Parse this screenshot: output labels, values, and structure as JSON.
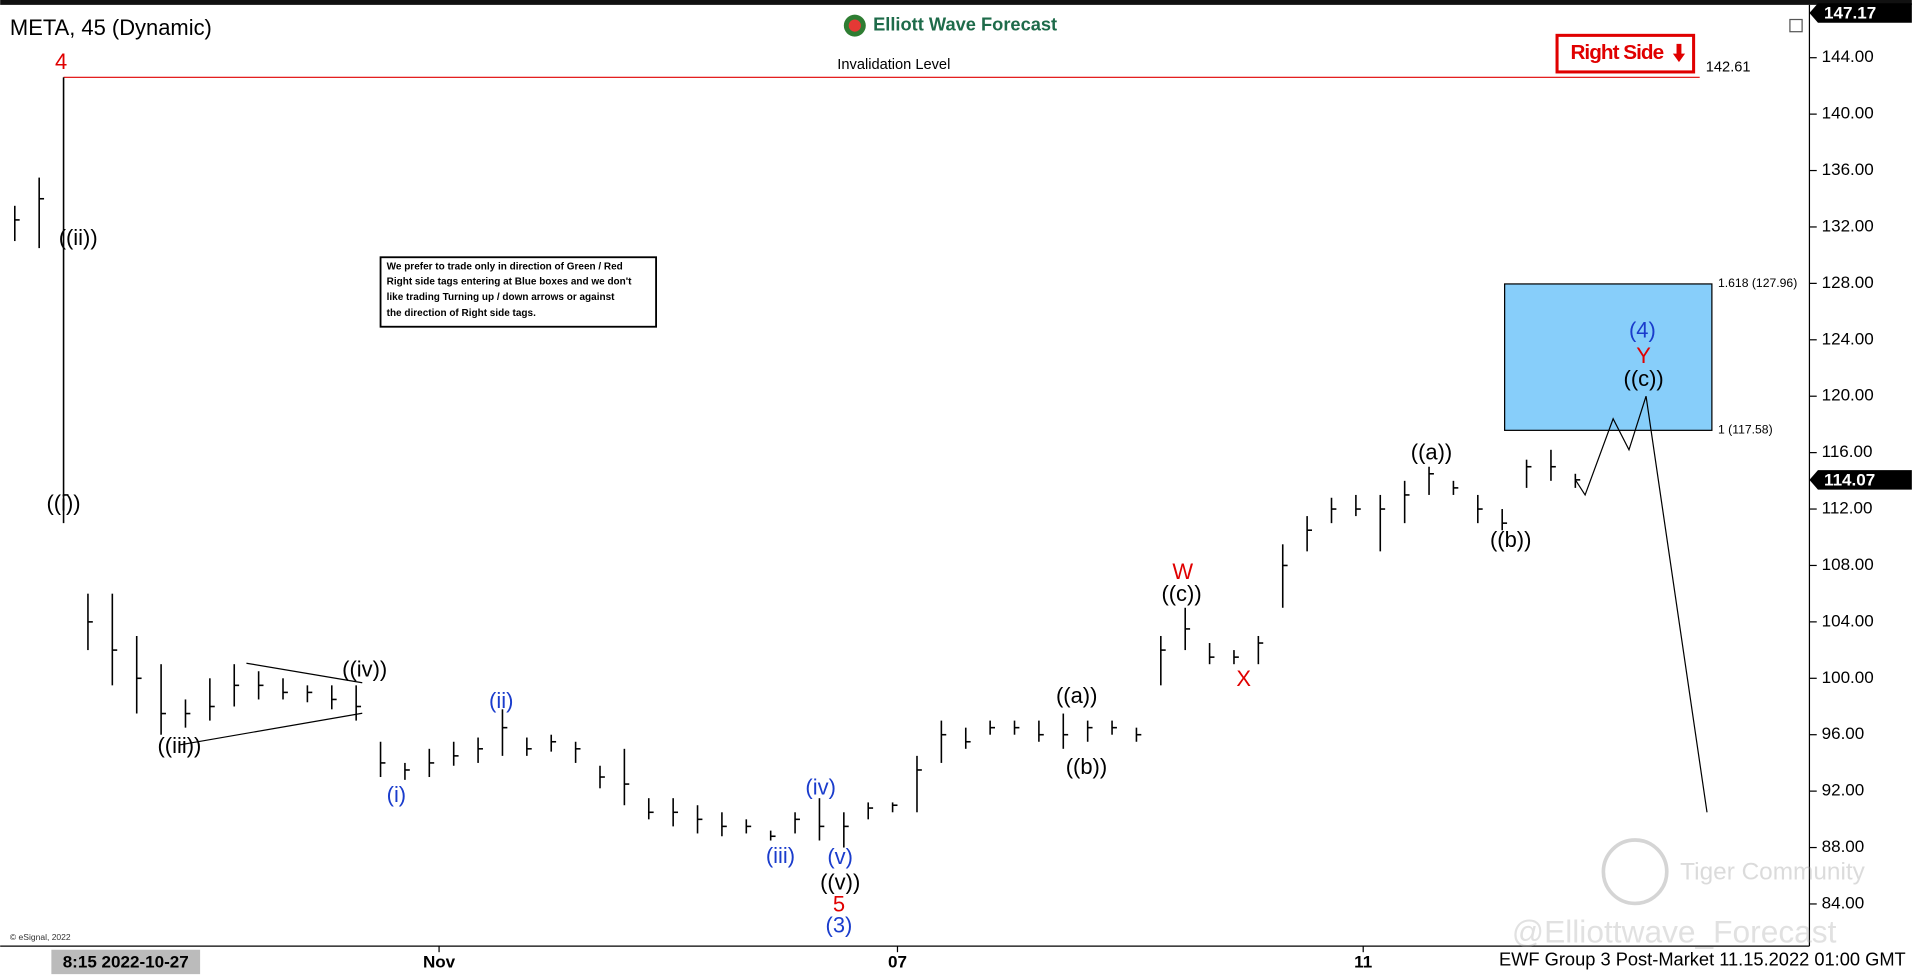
{
  "chart_data": {
    "type": "ohlc",
    "title": "META, 45 (Dynamic)",
    "brand": "Elliott Wave Forecast",
    "x": [
      0,
      1,
      2,
      3,
      4,
      5,
      6,
      7,
      8,
      9,
      10,
      11,
      12,
      13,
      14,
      15,
      16,
      17,
      18,
      19,
      20,
      21,
      22,
      23,
      24,
      25,
      26,
      27,
      28,
      29,
      30,
      31,
      32,
      33,
      34,
      35,
      36,
      37,
      38,
      39,
      40,
      41,
      42,
      43,
      44,
      45,
      46,
      47,
      48,
      49,
      50,
      51,
      52,
      53,
      54,
      55,
      56,
      57,
      58,
      59,
      60,
      61,
      62,
      63,
      64
    ],
    "high": [
      133.5,
      135.5,
      142.61,
      106,
      106,
      103,
      101,
      98.5,
      100,
      101,
      100.5,
      100,
      99.5,
      99.5,
      99.5,
      95.5,
      94,
      95,
      95.5,
      95.8,
      97.8,
      95.8,
      96,
      95.5,
      93.8,
      95,
      91.5,
      91.5,
      91,
      90.5,
      90,
      89.2,
      90.5,
      91.5,
      90.5,
      91.2,
      91.2,
      94.5,
      97,
      96.5,
      97,
      97,
      97,
      97.5,
      97,
      97,
      96.5,
      103,
      105,
      102.5,
      102,
      103,
      109.5,
      111.5,
      112.8,
      113,
      113,
      114,
      115,
      114,
      113,
      112,
      115.5,
      116.2,
      114.5
    ],
    "low": [
      131,
      130.5,
      111,
      102,
      99.5,
      97.5,
      96,
      96.5,
      97,
      98,
      98.5,
      98.5,
      98.3,
      97.8,
      97,
      93,
      92.8,
      93,
      93.8,
      94,
      94.5,
      94.5,
      94.8,
      94,
      92.2,
      91,
      90,
      89.5,
      89,
      88.8,
      89,
      88.5,
      89,
      88.5,
      88,
      90,
      90.5,
      90.5,
      94,
      95,
      96,
      96,
      95.5,
      95,
      95.5,
      96,
      95.5,
      99.5,
      102,
      101,
      101,
      101,
      105,
      109,
      111,
      111.5,
      109,
      111,
      113,
      113,
      111,
      110.5,
      113.5,
      114,
      113.5
    ],
    "close": [
      132.5,
      134,
      113,
      104,
      102,
      100,
      97.5,
      97.5,
      98,
      99.5,
      99.5,
      99,
      99,
      98.5,
      98,
      94,
      93.5,
      94,
      94.5,
      95,
      96.5,
      95,
      95.5,
      95,
      93,
      92.5,
      90.5,
      90.5,
      90,
      89.5,
      89.5,
      88.8,
      90,
      89.5,
      89.5,
      90.8,
      91,
      93.5,
      96,
      95.5,
      96.5,
      96.5,
      96,
      96,
      96.5,
      96.5,
      96,
      102,
      103.5,
      101.5,
      101.5,
      102.5,
      108,
      110.5,
      112,
      112,
      112,
      113,
      114.5,
      113.5,
      112,
      111,
      115,
      115,
      114.07
    ],
    "color": "#000000",
    "xlim": [
      -0.6,
      73.4
    ],
    "xticks": [
      {
        "value": 17.4,
        "label": "Nov"
      },
      {
        "value": 36.2,
        "label": "07"
      },
      {
        "value": 55.3,
        "label": "11"
      }
    ],
    "x_cursor_label": "8:15 2022-10-27",
    "ylim": [
      81.1,
      147.4
    ],
    "yticks": [
      {
        "value": 84,
        "label": "84.00"
      },
      {
        "value": 88,
        "label": "88.00"
      },
      {
        "value": 92,
        "label": "92.00"
      },
      {
        "value": 96,
        "label": "96.00"
      },
      {
        "value": 100,
        "label": "100.00"
      },
      {
        "value": 104,
        "label": "104.00"
      },
      {
        "value": 108,
        "label": "108.00"
      },
      {
        "value": 112,
        "label": "112.00"
      },
      {
        "value": 116,
        "label": "116.00"
      },
      {
        "value": 120,
        "label": "120.00"
      },
      {
        "value": 124,
        "label": "124.00"
      },
      {
        "value": 128,
        "label": "128.00"
      },
      {
        "value": 132,
        "label": "132.00"
      },
      {
        "value": 136,
        "label": "136.00"
      },
      {
        "value": 140,
        "label": "140.00"
      },
      {
        "value": 144,
        "label": "144.00"
      }
    ],
    "top_price": 147.17,
    "last_price": 114.07,
    "invalidation": {
      "label": "Invalidation Level",
      "value": 142.61,
      "color": "#e00000"
    },
    "fib_levels": [
      {
        "value": 127.96,
        "label": "1.618 (127.96)"
      },
      {
        "value": 117.58,
        "label": "1 (117.58)"
      }
    ],
    "fib_box_color": "#87cefa",
    "projection": {
      "x": [
        64,
        64.4,
        65.55,
        66.2,
        66.9,
        69.4
      ],
      "values": [
        114.07,
        113,
        118.4,
        116.2,
        120,
        90.5
      ]
    },
    "annotations": [
      {
        "text": "4",
        "color": "#e00000"
      },
      {
        "text": "((ii))",
        "color": "#000000"
      },
      {
        "text": "((i))",
        "color": "#000000"
      },
      {
        "text": "((iii))",
        "color": "#000000"
      },
      {
        "text": "((iv))",
        "color": "#000000"
      },
      {
        "text": "(i)",
        "color": "#1a3ccc"
      },
      {
        "text": "(ii)",
        "color": "#1a3ccc"
      },
      {
        "text": "(iii)",
        "color": "#1a3ccc"
      },
      {
        "text": "(iv)",
        "color": "#1a3ccc"
      },
      {
        "text": "(v)",
        "color": "#1a3ccc"
      },
      {
        "text": "((v))",
        "color": "#000000"
      },
      {
        "text": "5",
        "color": "#e00000"
      },
      {
        "text": "(3)",
        "color": "#1a3ccc"
      },
      {
        "text": "((a))",
        "color": "#000000"
      },
      {
        "text": "((b))",
        "color": "#000000"
      },
      {
        "text": "W",
        "color": "#e00000"
      },
      {
        "text": "((c))",
        "color": "#000000"
      },
      {
        "text": "X",
        "color": "#e00000"
      },
      {
        "text": "((a))",
        "color": "#000000"
      },
      {
        "text": "((b))",
        "color": "#000000"
      },
      {
        "text": "(4)",
        "color": "#1a3ccc"
      },
      {
        "text": "Y",
        "color": "#e00000"
      },
      {
        "text": "((c))",
        "color": "#000000"
      }
    ],
    "right_side_tag": "Right Side",
    "note": [
      "We prefer to trade only in direction of Green / Red",
      "Right side tags entering at Blue boxes and we don't",
      "like trading Turning up / down arrows or against",
      "the direction of Right side tags."
    ],
    "footer": "EWF Group 3 Post-Market 11.15.2022 01:00 GMT",
    "copyright": "© eSignal, 2022",
    "watermark": [
      "Tiger Community",
      "@Elliottwave_Forecast"
    ]
  }
}
